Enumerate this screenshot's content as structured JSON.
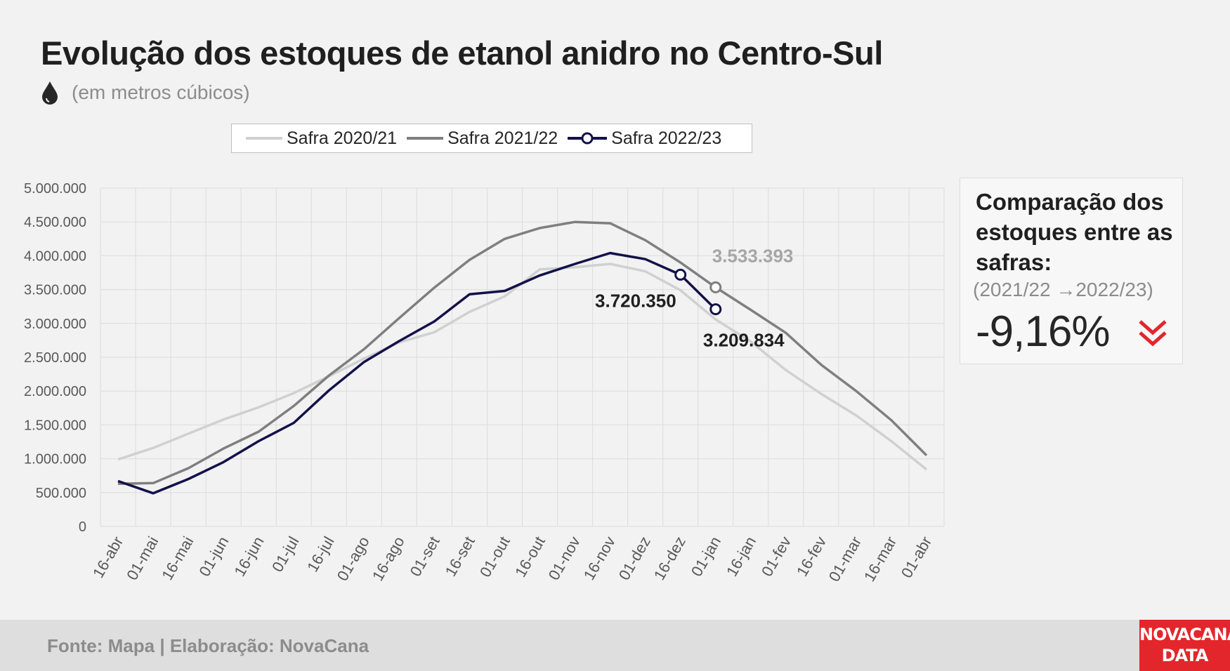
{
  "header": {
    "title": "Evolução dos estoques de etanol anidro no Centro-Sul",
    "subtitle": "(em metros cúbicos)",
    "icon": "drop-icon"
  },
  "chart_data": {
    "type": "line",
    "x": [
      "16-abr",
      "01-mai",
      "16-mai",
      "01-jun",
      "16-jun",
      "01-jul",
      "16-jul",
      "01-ago",
      "16-ago",
      "01-set",
      "16-set",
      "01-out",
      "16-out",
      "01-nov",
      "16-nov",
      "01-dez",
      "16-dez",
      "01-jan",
      "16-jan",
      "01-fev",
      "16-fev",
      "01-mar",
      "16-mar",
      "01-abr"
    ],
    "ylim": [
      0,
      5000000
    ],
    "yticks": [
      0,
      500000,
      1000000,
      1500000,
      2000000,
      2500000,
      3000000,
      3500000,
      4000000,
      4500000,
      5000000
    ],
    "ytick_labels": [
      "0",
      "500.000",
      "1.000.000",
      "1.500.000",
      "2.000.000",
      "2.500.000",
      "3.000.000",
      "3.500.000",
      "4.000.000",
      "4.500.000",
      "5.000.000"
    ],
    "grid": true,
    "legend_position": "top",
    "series": [
      {
        "name": "Safra 2020/21",
        "color": "#d0d0d0",
        "values": [
          990000,
          1160000,
          1370000,
          1580000,
          1760000,
          1970000,
          2220000,
          2480000,
          2720000,
          2870000,
          3170000,
          3400000,
          3800000,
          3830000,
          3880000,
          3770000,
          3490000,
          3060000,
          2730000,
          2310000,
          1960000,
          1640000,
          1260000,
          840000
        ]
      },
      {
        "name": "Safra 2021/22",
        "color": "#7f7f7f",
        "values": [
          630000,
          640000,
          860000,
          1150000,
          1400000,
          1780000,
          2230000,
          2620000,
          3080000,
          3530000,
          3940000,
          4250000,
          4410000,
          4500000,
          4480000,
          4230000,
          3900000,
          3533393,
          3200000,
          2860000,
          2390000,
          2000000,
          1570000,
          1050000
        ]
      },
      {
        "name": "Safra 2022/23",
        "color": "#12114a",
        "values": [
          670000,
          490000,
          700000,
          950000,
          1260000,
          1530000,
          2010000,
          2430000,
          2740000,
          3030000,
          3430000,
          3480000,
          3710000,
          3880000,
          4040000,
          3950000,
          3720350,
          3209834,
          null,
          null,
          null,
          null,
          null,
          null
        ]
      }
    ],
    "annotations": [
      {
        "text": "3.533.393",
        "x": "01-jan",
        "series": "Safra 2021/22",
        "color": "#a6a6a6"
      },
      {
        "text": "3.720.350",
        "x": "16-dez",
        "series": "Safra 2022/23",
        "color": "#1f1f1f"
      },
      {
        "text": "3.209.834",
        "x": "01-jan",
        "series": "Safra 2022/23",
        "color": "#1f1f1f"
      }
    ]
  },
  "panel": {
    "heading": "Comparação dos estoques entre as safras:",
    "period": "(2021/22 →2022/23)",
    "value": "-9,16%",
    "arrow_color": "#e3262b",
    "icon": "double-chevron-down-icon"
  },
  "footer": {
    "source": "Fonte: Mapa | Elaboração: NovaCana",
    "logo_line1": "NOVACANA",
    "logo_line2": "DATA"
  }
}
